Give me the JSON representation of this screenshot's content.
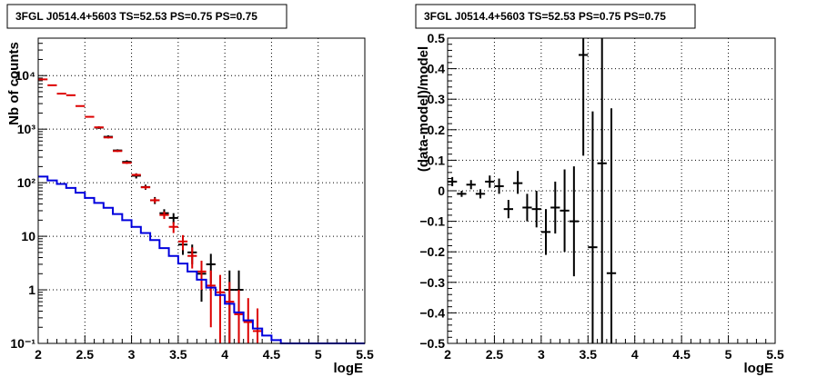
{
  "colors": {
    "data": "#000000",
    "model_points": "#dd0000",
    "source_model": "#0000dd",
    "grid": "#000000"
  },
  "chart_data": [
    {
      "type": "histogram-errorbars",
      "title": "3FGL J0514.4+5603 TS=52.53 PS=0.75 PS=0.75",
      "xlabel": "logE",
      "ylabel": "Nb of counts",
      "xlim": [
        2,
        5.5
      ],
      "ylim": [
        0.1,
        50000
      ],
      "log_y": true,
      "grid": true,
      "x_ticks": [
        2,
        2.5,
        3,
        3.5,
        4,
        4.5,
        5,
        5.5
      ],
      "x_tick_labels": [
        "2",
        "2.5",
        "3",
        "3.5",
        "4",
        "4.5",
        "5",
        "5.5"
      ],
      "y_ticks": [
        0.1,
        1,
        10,
        100,
        1000,
        10000
      ],
      "y_tick_labels": [
        "10⁻¹",
        "1",
        "10",
        "10²",
        "10³",
        "10⁴"
      ],
      "series": [
        {
          "style": "errorbar",
          "color_key": "data",
          "points": [
            {
              "x": 2.65,
              "y": 1070,
              "ylo": 1010,
              "yhi": 1130
            },
            {
              "x": 2.75,
              "y": 720,
              "ylo": 675,
              "yhi": 765
            },
            {
              "x": 2.85,
              "y": 400,
              "ylo": 380,
              "yhi": 420
            },
            {
              "x": 2.95,
              "y": 245,
              "ylo": 228,
              "yhi": 262
            },
            {
              "x": 3.05,
              "y": 135,
              "ylo": 120,
              "yhi": 150
            },
            {
              "x": 3.15,
              "y": 83,
              "ylo": 74,
              "yhi": 92
            },
            {
              "x": 3.25,
              "y": 47,
              "ylo": 40,
              "yhi": 54
            },
            {
              "x": 3.35,
              "y": 27,
              "ylo": 22,
              "yhi": 32
            },
            {
              "x": 3.45,
              "y": 22,
              "ylo": 17,
              "yhi": 27
            },
            {
              "x": 3.55,
              "y": 7,
              "ylo": 4.5,
              "yhi": 9.5
            },
            {
              "x": 3.65,
              "y": 5,
              "ylo": 3,
              "yhi": 7
            },
            {
              "x": 3.75,
              "y": 2,
              "ylo": 0.6,
              "yhi": 3.4
            },
            {
              "x": 3.85,
              "y": 3,
              "ylo": 1.3,
              "yhi": 4.7
            },
            {
              "x": 4.05,
              "y": 1,
              "ylo": 0.1,
              "yhi": 2.3
            },
            {
              "x": 4.15,
              "y": 1,
              "ylo": 0.1,
              "yhi": 2.3
            }
          ]
        },
        {
          "style": "errorbar",
          "color_key": "model_points",
          "points": [
            {
              "x": 2.05,
              "y": 8500,
              "ylo": 8300,
              "yhi": 8700
            },
            {
              "x": 2.15,
              "y": 6600,
              "ylo": 6450,
              "yhi": 6750
            },
            {
              "x": 2.25,
              "y": 4600,
              "ylo": 4480,
              "yhi": 4720
            },
            {
              "x": 2.35,
              "y": 4300,
              "ylo": 4180,
              "yhi": 4420
            },
            {
              "x": 2.45,
              "y": 2700,
              "ylo": 2620,
              "yhi": 2780
            },
            {
              "x": 2.55,
              "y": 1700,
              "ylo": 1650,
              "yhi": 1750
            },
            {
              "x": 2.65,
              "y": 1080,
              "ylo": 1045,
              "yhi": 1115
            },
            {
              "x": 2.75,
              "y": 700,
              "ylo": 675,
              "yhi": 725
            },
            {
              "x": 2.85,
              "y": 390,
              "ylo": 375,
              "yhi": 405
            },
            {
              "x": 2.95,
              "y": 235,
              "ylo": 224,
              "yhi": 246
            },
            {
              "x": 3.05,
              "y": 140,
              "ylo": 132,
              "yhi": 148
            },
            {
              "x": 3.15,
              "y": 82,
              "ylo": 76,
              "yhi": 88
            },
            {
              "x": 3.25,
              "y": 47,
              "ylo": 42,
              "yhi": 52
            },
            {
              "x": 3.35,
              "y": 25,
              "ylo": 21,
              "yhi": 29
            },
            {
              "x": 3.45,
              "y": 15,
              "ylo": 11.5,
              "yhi": 18.5
            },
            {
              "x": 3.55,
              "y": 8,
              "ylo": 5.5,
              "yhi": 10.5
            },
            {
              "x": 3.65,
              "y": 4.3,
              "ylo": 2.5,
              "yhi": 6.2
            },
            {
              "x": 3.75,
              "y": 2.2,
              "ylo": 1.0,
              "yhi": 3.5
            },
            {
              "x": 3.85,
              "y": 1.2,
              "ylo": 0.2,
              "yhi": 2.3
            },
            {
              "x": 3.95,
              "y": 0.9,
              "ylo": 0.1,
              "yhi": 1.9
            },
            {
              "x": 4.05,
              "y": 0.6,
              "ylo": 0.1,
              "yhi": 1.4
            },
            {
              "x": 4.15,
              "y": 0.35,
              "ylo": 0.1,
              "yhi": 1.0
            },
            {
              "x": 4.25,
              "y": 0.25,
              "ylo": 0.1,
              "yhi": 0.7
            },
            {
              "x": 4.35,
              "y": 0.17,
              "ylo": 0.1,
              "yhi": 0.45
            }
          ]
        },
        {
          "style": "step",
          "color_key": "source_model",
          "bin_edges": [
            2.0,
            2.1,
            2.2,
            2.3,
            2.4,
            2.5,
            2.6,
            2.7,
            2.8,
            2.9,
            3.0,
            3.1,
            3.2,
            3.3,
            3.4,
            3.5,
            3.6,
            3.7,
            3.8,
            3.9,
            4.0,
            4.1,
            4.2,
            4.3,
            4.4,
            4.5,
            4.6,
            5.5
          ],
          "values": [
            130,
            110,
            95,
            80,
            65,
            52,
            42,
            34,
            26,
            20,
            15,
            11.5,
            8.5,
            6.0,
            4.3,
            3.1,
            2.2,
            1.55,
            1.1,
            0.8,
            0.55,
            0.38,
            0.27,
            0.19,
            0.14,
            0.115,
            0.1
          ]
        }
      ]
    },
    {
      "type": "errorbar",
      "title": "3FGL J0514.4+5603 TS=52.53 PS=0.75 PS=0.75",
      "xlabel": "logE",
      "ylabel": "(data-model)/model",
      "xlim": [
        2,
        5.5
      ],
      "ylim": [
        -0.5,
        0.5
      ],
      "grid": true,
      "x_ticks": [
        2,
        2.5,
        3,
        3.5,
        4,
        4.5,
        5,
        5.5
      ],
      "x_tick_labels": [
        "2",
        "2.5",
        "3",
        "3.5",
        "4",
        "4.5",
        "5",
        "5.5"
      ],
      "y_ticks": [
        -0.5,
        -0.4,
        -0.3,
        -0.2,
        -0.1,
        0,
        0.1,
        0.2,
        0.3,
        0.4,
        0.5
      ],
      "y_tick_labels": [
        "−0.5",
        "−0.4",
        "−0.3",
        "−0.2",
        "−0.1",
        "0",
        "0.1",
        "0.2",
        "0.3",
        "0.4",
        "0.5"
      ],
      "series": [
        {
          "style": "errorbar",
          "color_key": "data",
          "points": [
            {
              "x": 2.05,
              "y": 0.03,
              "ylo": 0.015,
              "yhi": 0.045
            },
            {
              "x": 2.15,
              "y": -0.01,
              "ylo": -0.02,
              "yhi": 0.0
            },
            {
              "x": 2.25,
              "y": 0.02,
              "ylo": 0.005,
              "yhi": 0.035
            },
            {
              "x": 2.35,
              "y": -0.01,
              "ylo": -0.025,
              "yhi": 0.005
            },
            {
              "x": 2.45,
              "y": 0.03,
              "ylo": 0.01,
              "yhi": 0.05
            },
            {
              "x": 2.55,
              "y": 0.015,
              "ylo": -0.01,
              "yhi": 0.04
            },
            {
              "x": 2.65,
              "y": -0.06,
              "ylo": -0.09,
              "yhi": -0.03
            },
            {
              "x": 2.75,
              "y": 0.025,
              "ylo": -0.01,
              "yhi": 0.065
            },
            {
              "x": 2.85,
              "y": -0.055,
              "ylo": -0.1,
              "yhi": -0.01
            },
            {
              "x": 2.95,
              "y": -0.06,
              "ylo": -0.12,
              "yhi": 0.0
            },
            {
              "x": 3.05,
              "y": -0.135,
              "ylo": -0.21,
              "yhi": -0.06
            },
            {
              "x": 3.15,
              "y": -0.055,
              "ylo": -0.14,
              "yhi": 0.03
            },
            {
              "x": 3.25,
              "y": -0.065,
              "ylo": -0.2,
              "yhi": 0.07
            },
            {
              "x": 3.35,
              "y": -0.1,
              "ylo": -0.28,
              "yhi": 0.08
            },
            {
              "x": 3.45,
              "y": 0.445,
              "ylo": 0.115,
              "yhi": 0.5
            },
            {
              "x": 3.55,
              "y": -0.185,
              "ylo": -0.5,
              "yhi": 0.26
            },
            {
              "x": 3.65,
              "y": 0.09,
              "ylo": -0.5,
              "yhi": 0.5
            },
            {
              "x": 3.75,
              "y": -0.27,
              "ylo": -0.5,
              "yhi": 0.27
            }
          ]
        }
      ]
    }
  ]
}
